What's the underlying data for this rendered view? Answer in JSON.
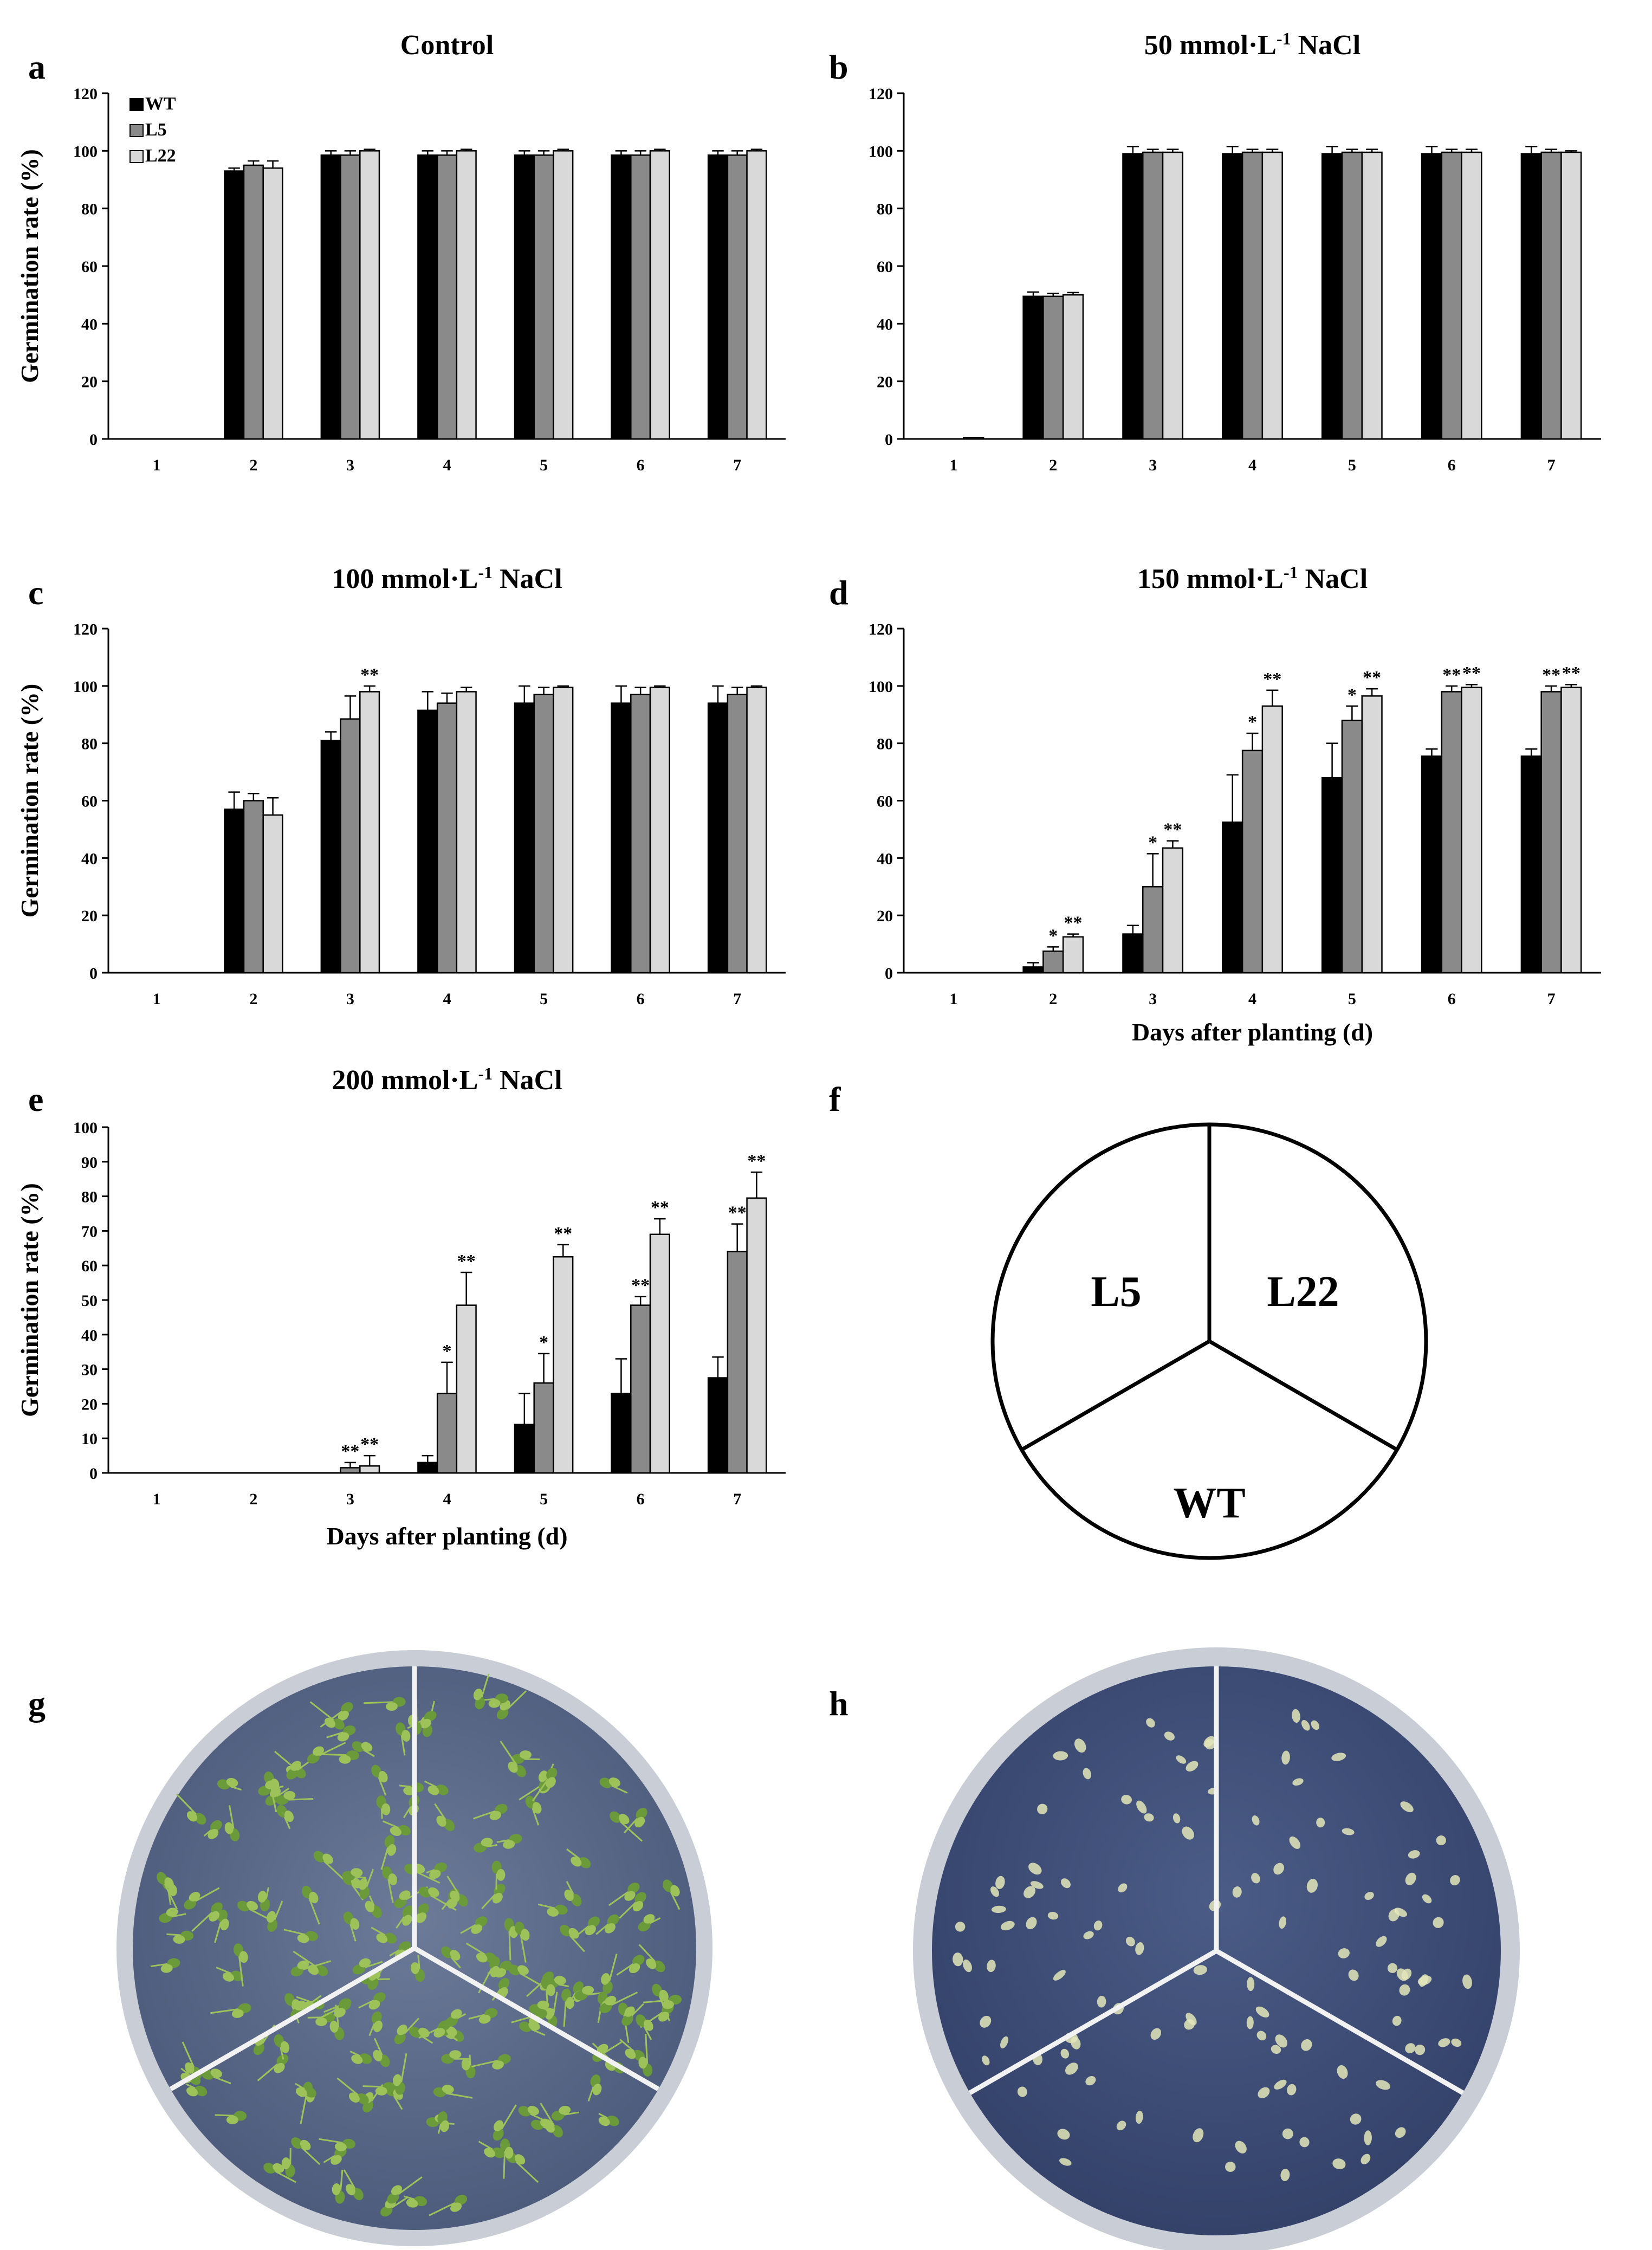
{
  "figure": {
    "panel_letters": [
      "a",
      "b",
      "c",
      "d",
      "e",
      "f",
      "g",
      "h"
    ],
    "legend": [
      "WT",
      "L5",
      "L22"
    ],
    "legend_colors": [
      "#000000",
      "#8a8a8a",
      "#d9d9d9"
    ],
    "dish_labels": [
      "L5",
      "L22",
      "WT"
    ],
    "photo_g_colors": {
      "agar": "#5a6a8a",
      "rim": "#c9cdd6",
      "seedling": "#6a9a3a",
      "seedling_light": "#9ec25a",
      "divider": "#f2f2f2"
    },
    "photo_h_colors": {
      "agar": "#3e4f7a",
      "rim": "#c9cdd6",
      "seed": "#e3e6b8",
      "divider": "#f2f2f2"
    }
  },
  "chart_data": [
    {
      "panel": "a",
      "type": "bar",
      "title": "Control",
      "xlabel": "",
      "ylabel": "Germination rate (%)",
      "ylim": [
        0,
        120
      ],
      "yticks": [
        0,
        20,
        40,
        60,
        80,
        100,
        120
      ],
      "categories": [
        "1",
        "2",
        "3",
        "4",
        "5",
        "6",
        "7"
      ],
      "series": [
        {
          "name": "WT",
          "values": [
            0,
            93,
            98.5,
            98.5,
            98.5,
            98.5,
            98.5
          ],
          "errors": [
            0,
            1,
            1.5,
            1.5,
            1.5,
            1.5,
            1.5
          ]
        },
        {
          "name": "L5",
          "values": [
            0,
            95,
            98.5,
            98.5,
            98.5,
            98.5,
            98.5
          ],
          "errors": [
            0,
            1.5,
            1.5,
            1.5,
            1.5,
            1.5,
            1.5
          ]
        },
        {
          "name": "L22",
          "values": [
            0,
            94,
            100,
            100,
            100,
            100,
            100
          ],
          "errors": [
            0,
            2.5,
            0.5,
            0.5,
            0.5,
            0.5,
            0.5
          ]
        }
      ],
      "stars": [
        [
          "",
          "",
          ""
        ],
        [
          "",
          "",
          ""
        ],
        [
          "",
          "",
          ""
        ],
        [
          "",
          "",
          ""
        ],
        [
          "",
          "",
          ""
        ],
        [
          "",
          "",
          ""
        ],
        [
          "",
          "",
          ""
        ]
      ]
    },
    {
      "panel": "b",
      "type": "bar",
      "title": "50 mmol·L",
      "title_sup": "-1",
      "title_suffix": " NaCl",
      "xlabel": "",
      "ylabel": "",
      "ylim": [
        0,
        120
      ],
      "yticks": [
        0,
        20,
        40,
        60,
        80,
        100,
        120
      ],
      "categories": [
        "1",
        "2",
        "3",
        "4",
        "5",
        "6",
        "7"
      ],
      "series": [
        {
          "name": "WT",
          "values": [
            0,
            49.5,
            99,
            99,
            99,
            99,
            99
          ],
          "errors": [
            0,
            1.5,
            2.5,
            2.5,
            2.5,
            2.5,
            2.5
          ]
        },
        {
          "name": "L5",
          "values": [
            0,
            49.5,
            99.5,
            99.5,
            99.5,
            99.5,
            99.5
          ],
          "errors": [
            0,
            1,
            1,
            1,
            1,
            1,
            1
          ]
        },
        {
          "name": "L22",
          "values": [
            0.5,
            50,
            99.5,
            99.5,
            99.5,
            99.5,
            99.5
          ],
          "errors": [
            0,
            0.8,
            1,
            1,
            1,
            1,
            0.5
          ]
        }
      ],
      "stars": [
        [
          "",
          "",
          ""
        ],
        [
          "",
          "",
          ""
        ],
        [
          "",
          "",
          ""
        ],
        [
          "",
          "",
          ""
        ],
        [
          "",
          "",
          ""
        ],
        [
          "",
          "",
          ""
        ],
        [
          "",
          "",
          ""
        ]
      ]
    },
    {
      "panel": "c",
      "type": "bar",
      "title": "100 mmol·L",
      "title_sup": "-1",
      "title_suffix": " NaCl",
      "xlabel": "",
      "ylabel": "Germination rate (%)",
      "ylim": [
        0,
        120
      ],
      "yticks": [
        0,
        20,
        40,
        60,
        80,
        100,
        120
      ],
      "categories": [
        "1",
        "2",
        "3",
        "4",
        "5",
        "6",
        "7"
      ],
      "series": [
        {
          "name": "WT",
          "values": [
            0,
            57,
            81,
            91.5,
            94,
            94,
            94
          ],
          "errors": [
            0,
            6,
            3,
            6.5,
            6,
            6,
            6
          ]
        },
        {
          "name": "L5",
          "values": [
            0,
            60,
            88.5,
            94,
            97,
            97,
            97
          ],
          "errors": [
            0,
            2.5,
            8,
            3.5,
            2.5,
            2.5,
            2.5
          ]
        },
        {
          "name": "L22",
          "values": [
            0,
            55,
            98,
            98,
            99.5,
            99.5,
            99.5
          ],
          "errors": [
            0,
            6,
            2,
            1.5,
            0.5,
            0.5,
            0.5
          ]
        }
      ],
      "stars": [
        [
          "",
          "",
          ""
        ],
        [
          "",
          "",
          ""
        ],
        [
          "",
          "",
          "**"
        ],
        [
          "",
          "",
          ""
        ],
        [
          "",
          "",
          ""
        ],
        [
          "",
          "",
          ""
        ],
        [
          "",
          "",
          ""
        ]
      ]
    },
    {
      "panel": "d",
      "type": "bar",
      "title": "150 mmol·L",
      "title_sup": "-1",
      "title_suffix": " NaCl",
      "xlabel": "Days after planting (d)",
      "ylabel": "",
      "ylim": [
        0,
        120
      ],
      "yticks": [
        0,
        20,
        40,
        60,
        80,
        100,
        120
      ],
      "categories": [
        "1",
        "2",
        "3",
        "4",
        "5",
        "6",
        "7"
      ],
      "series": [
        {
          "name": "WT",
          "values": [
            0,
            2,
            13.5,
            52.5,
            68,
            75.5,
            75.5
          ],
          "errors": [
            0,
            1.5,
            3,
            16.5,
            12,
            2.5,
            2.5
          ]
        },
        {
          "name": "L5",
          "values": [
            0,
            7.5,
            30,
            77.5,
            88,
            98,
            98
          ],
          "errors": [
            0,
            1.5,
            11.5,
            6,
            5,
            2,
            2
          ]
        },
        {
          "name": "L22",
          "values": [
            0,
            12.5,
            43.5,
            93,
            96.5,
            99.5,
            99.5
          ],
          "errors": [
            0,
            1,
            2.5,
            5.5,
            2.5,
            1,
            1
          ]
        }
      ],
      "stars": [
        [
          "",
          "",
          ""
        ],
        [
          "",
          "*",
          "**"
        ],
        [
          "",
          "*",
          "**"
        ],
        [
          "",
          "*",
          "**"
        ],
        [
          "",
          "*",
          "**"
        ],
        [
          "",
          "**",
          "**"
        ],
        [
          "",
          "**",
          "**"
        ]
      ]
    },
    {
      "panel": "e",
      "type": "bar",
      "title": "200 mmol·L",
      "title_sup": "-1",
      "title_suffix": " NaCl",
      "xlabel": "Days after planting (d)",
      "ylabel": "Germination rate (%)",
      "ylim": [
        0,
        100
      ],
      "yticks": [
        0,
        10,
        20,
        30,
        40,
        50,
        60,
        70,
        80,
        90,
        100
      ],
      "categories": [
        "1",
        "2",
        "3",
        "4",
        "5",
        "6",
        "7"
      ],
      "series": [
        {
          "name": "WT",
          "values": [
            0,
            0,
            0,
            3,
            14,
            23,
            27.5
          ],
          "errors": [
            0,
            0,
            0,
            2,
            9,
            10,
            6
          ]
        },
        {
          "name": "L5",
          "values": [
            0,
            0,
            1.5,
            23,
            26,
            48.5,
            64
          ],
          "errors": [
            0,
            0,
            1.5,
            9,
            8.5,
            2.5,
            8
          ]
        },
        {
          "name": "L22",
          "values": [
            0,
            0,
            2,
            48.5,
            62.5,
            69,
            79.5
          ],
          "errors": [
            0,
            0,
            3,
            9.5,
            3.5,
            4.5,
            7.5
          ]
        }
      ],
      "stars": [
        [
          "",
          "",
          ""
        ],
        [
          "",
          "",
          ""
        ],
        [
          "",
          "**",
          "**"
        ],
        [
          "",
          "*",
          "**"
        ],
        [
          "",
          "*",
          "**"
        ],
        [
          "",
          "**",
          "**"
        ],
        [
          "",
          "**",
          "**"
        ]
      ]
    }
  ]
}
